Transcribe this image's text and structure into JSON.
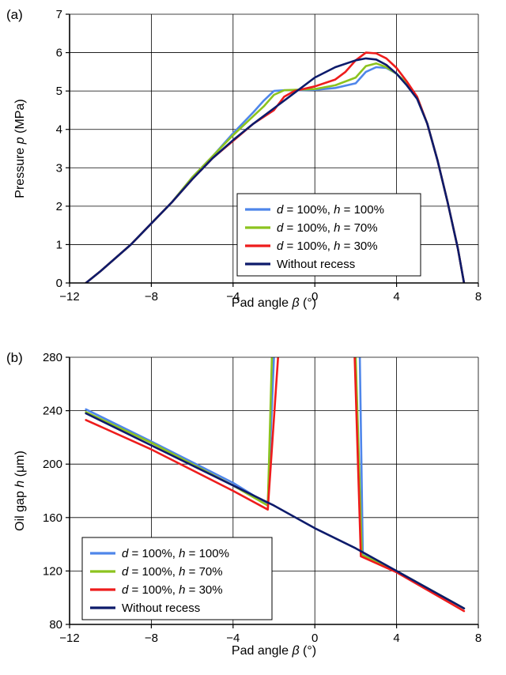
{
  "chart_data": [
    {
      "type": "line",
      "panel_label": "(a)",
      "xlabel": {
        "text": "Pad angle ",
        "symbol": "β",
        "unit": " (°)"
      },
      "ylabel": {
        "text": "Pressure ",
        "symbol": "p",
        "unit": " (MPa)"
      },
      "xlim": [
        -12,
        8
      ],
      "ylim": [
        0,
        7
      ],
      "xticks": [
        -12,
        -8,
        -4,
        0,
        4,
        8
      ],
      "yticks": [
        0,
        1,
        2,
        3,
        4,
        5,
        6,
        7
      ],
      "x_tick_labels": [
        "−12",
        "−8",
        "−4",
        "0",
        "4",
        "8"
      ],
      "y_tick_labels": [
        "0",
        "1",
        "2",
        "3",
        "4",
        "5",
        "6",
        "7"
      ],
      "grid": true,
      "legend_position": "lower-right",
      "series": [
        {
          "name": {
            "a": "d",
            "b": " = 100%, ",
            "c": "h",
            "d": " = 100%"
          },
          "color": "#4f86ea",
          "points": [
            [
              -11.2,
              0
            ],
            [
              -10.5,
              0.3
            ],
            [
              -9,
              1.0
            ],
            [
              -8,
              1.55
            ],
            [
              -7,
              2.1
            ],
            [
              -6,
              2.75
            ],
            [
              -5,
              3.3
            ],
            [
              -4,
              3.9
            ],
            [
              -3,
              4.45
            ],
            [
              -2.5,
              4.75
            ],
            [
              -2,
              5.0
            ],
            [
              -1.5,
              5.02
            ],
            [
              -1,
              5.02
            ],
            [
              0,
              5.03
            ],
            [
              1,
              5.08
            ],
            [
              2,
              5.2
            ],
            [
              2.5,
              5.5
            ],
            [
              3,
              5.62
            ],
            [
              3.5,
              5.6
            ],
            [
              4,
              5.45
            ],
            [
              4.5,
              5.2
            ],
            [
              5,
              4.85
            ],
            [
              5.5,
              4.15
            ],
            [
              6,
              3.2
            ],
            [
              6.5,
              2.1
            ],
            [
              7,
              0.9
            ],
            [
              7.3,
              0
            ]
          ]
        },
        {
          "name": {
            "a": "d",
            "b": " = 100%, ",
            "c": "h",
            "d": " = 70%"
          },
          "color": "#8cc31f",
          "points": [
            [
              -11.2,
              0
            ],
            [
              -10.5,
              0.3
            ],
            [
              -9,
              1.0
            ],
            [
              -8,
              1.55
            ],
            [
              -7,
              2.1
            ],
            [
              -6,
              2.75
            ],
            [
              -5,
              3.3
            ],
            [
              -4,
              3.85
            ],
            [
              -3,
              4.35
            ],
            [
              -2.5,
              4.6
            ],
            [
              -2,
              4.9
            ],
            [
              -1.5,
              5.02
            ],
            [
              -1,
              5.03
            ],
            [
              0,
              5.05
            ],
            [
              1,
              5.15
            ],
            [
              2,
              5.35
            ],
            [
              2.5,
              5.65
            ],
            [
              3,
              5.72
            ],
            [
              3.5,
              5.62
            ],
            [
              4,
              5.45
            ],
            [
              4.5,
              5.2
            ],
            [
              5,
              4.85
            ],
            [
              5.5,
              4.15
            ],
            [
              6,
              3.2
            ],
            [
              6.5,
              2.1
            ],
            [
              7,
              0.9
            ],
            [
              7.3,
              0
            ]
          ]
        },
        {
          "name": {
            "a": "d",
            "b": " = 100%, ",
            "c": "h",
            "d": " = 30%"
          },
          "color": "#ee1c1c",
          "points": [
            [
              -11.2,
              0
            ],
            [
              -10.5,
              0.3
            ],
            [
              -9,
              1.0
            ],
            [
              -8,
              1.55
            ],
            [
              -7,
              2.1
            ],
            [
              -6,
              2.7
            ],
            [
              -5,
              3.25
            ],
            [
              -4,
              3.7
            ],
            [
              -3,
              4.15
            ],
            [
              -2,
              4.5
            ],
            [
              -1.5,
              4.85
            ],
            [
              -1,
              5.0
            ],
            [
              0,
              5.12
            ],
            [
              1,
              5.3
            ],
            [
              1.5,
              5.5
            ],
            [
              2,
              5.8
            ],
            [
              2.5,
              6.0
            ],
            [
              3,
              5.98
            ],
            [
              3.5,
              5.85
            ],
            [
              4,
              5.6
            ],
            [
              4.5,
              5.25
            ],
            [
              5,
              4.85
            ],
            [
              5.5,
              4.15
            ],
            [
              6,
              3.2
            ],
            [
              6.5,
              2.1
            ],
            [
              7,
              0.9
            ],
            [
              7.3,
              0
            ]
          ]
        },
        {
          "name": {
            "a": "",
            "b": "Without recess",
            "c": "",
            "d": ""
          },
          "color": "#0d1b6b",
          "points": [
            [
              -11.2,
              0
            ],
            [
              -10.5,
              0.3
            ],
            [
              -9,
              1.0
            ],
            [
              -8,
              1.55
            ],
            [
              -7,
              2.1
            ],
            [
              -6,
              2.7
            ],
            [
              -5,
              3.25
            ],
            [
              -4,
              3.72
            ],
            [
              -3,
              4.15
            ],
            [
              -2,
              4.55
            ],
            [
              -1,
              4.95
            ],
            [
              0,
              5.35
            ],
            [
              1,
              5.62
            ],
            [
              2,
              5.8
            ],
            [
              2.5,
              5.85
            ],
            [
              3,
              5.82
            ],
            [
              3.5,
              5.68
            ],
            [
              4,
              5.45
            ],
            [
              4.5,
              5.15
            ],
            [
              5,
              4.8
            ],
            [
              5.5,
              4.15
            ],
            [
              6,
              3.2
            ],
            [
              6.5,
              2.1
            ],
            [
              7,
              0.9
            ],
            [
              7.3,
              0
            ]
          ]
        }
      ]
    },
    {
      "type": "line",
      "panel_label": "(b)",
      "xlabel": {
        "text": "Pad angle ",
        "symbol": "β",
        "unit": " (°)"
      },
      "ylabel": {
        "text": "Oil gap ",
        "symbol": "h",
        "unit": " (μm)"
      },
      "xlim": [
        -12,
        8
      ],
      "ylim": [
        80,
        280
      ],
      "xticks": [
        -12,
        -8,
        -4,
        0,
        4,
        8
      ],
      "yticks": [
        80,
        120,
        160,
        200,
        240,
        280
      ],
      "x_tick_labels": [
        "−12",
        "−8",
        "−4",
        "0",
        "4",
        "8"
      ],
      "y_tick_labels": [
        "80",
        "120",
        "160",
        "200",
        "240",
        "280"
      ],
      "grid": true,
      "legend_position": "lower-left",
      "series": [
        {
          "name": {
            "a": "d",
            "b": " = 100%, ",
            "c": "h",
            "d": " = 100%"
          },
          "color": "#4f86ea",
          "points": [
            [
              -11.2,
              241
            ],
            [
              -8,
              217
            ],
            [
              -4,
              186
            ],
            [
              -2.3,
              170
            ],
            [
              -2.0,
              280
            ],
            [
              null,
              null
            ],
            [
              2.2,
              280
            ],
            [
              2.35,
              132
            ],
            [
              4,
              120
            ],
            [
              7.3,
              92
            ]
          ]
        },
        {
          "name": {
            "a": "d",
            "b": " = 100%, ",
            "c": "h",
            "d": " = 70%"
          },
          "color": "#8cc31f",
          "points": [
            [
              -11.2,
              239
            ],
            [
              -8,
              216
            ],
            [
              -4,
              184
            ],
            [
              -2.3,
              169
            ],
            [
              -2.1,
              280
            ],
            [
              null,
              null
            ],
            [
              2.0,
              280
            ],
            [
              2.3,
              132
            ],
            [
              4,
              120
            ],
            [
              7.3,
              92
            ]
          ]
        },
        {
          "name": {
            "a": "d",
            "b": " = 100%, ",
            "c": "h",
            "d": " = 30%"
          },
          "color": "#ee1c1c",
          "points": [
            [
              -11.2,
              233
            ],
            [
              -8,
              211
            ],
            [
              -4,
              180
            ],
            [
              -2.3,
              166
            ],
            [
              -1.8,
              280
            ],
            [
              null,
              null
            ],
            [
              1.95,
              280
            ],
            [
              2.25,
              131
            ],
            [
              4,
              119
            ],
            [
              7.3,
              90
            ]
          ]
        },
        {
          "name": {
            "a": "",
            "b": "Without recess",
            "c": "",
            "d": ""
          },
          "color": "#0d1b6b",
          "points": [
            [
              -11.2,
              238
            ],
            [
              -8,
              214
            ],
            [
              -4,
              184
            ],
            [
              -2,
              169
            ],
            [
              0,
              152
            ],
            [
              2,
              137
            ],
            [
              4,
              120
            ],
            [
              6,
              103
            ],
            [
              7.3,
              92
            ]
          ]
        }
      ]
    }
  ]
}
